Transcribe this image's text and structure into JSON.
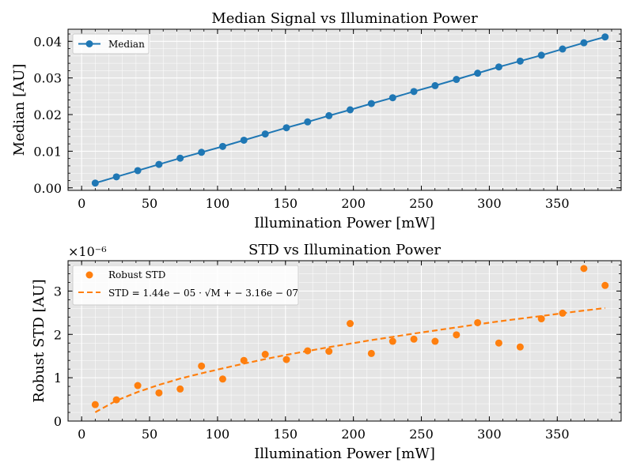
{
  "chart_data": [
    {
      "type": "line",
      "title": "Median Signal vs Illumination Power",
      "xlabel": "Illumination Power [mW]",
      "ylabel": "Median [AU]",
      "xlim": [
        -10,
        397
      ],
      "ylim": [
        -0.0007,
        0.0433
      ],
      "xticks": [
        0,
        50,
        100,
        150,
        200,
        250,
        300,
        350
      ],
      "yticks": [
        0.0,
        0.01,
        0.02,
        0.03,
        0.04
      ],
      "ytick_labels": [
        "0.00",
        "0.01",
        "0.02",
        "0.03",
        "0.04"
      ],
      "grid": true,
      "legend": "upper-left",
      "color": "#1f77b4",
      "series": [
        {
          "name": "Median",
          "style": "line-markers",
          "x": [
            10,
            25.6,
            41.3,
            56.9,
            72.5,
            88.2,
            103.8,
            119.4,
            135.1,
            150.7,
            166.3,
            182.0,
            197.6,
            213.2,
            228.9,
            244.5,
            260.1,
            275.8,
            291.4,
            307.0,
            322.7,
            338.3,
            353.9,
            369.6,
            385.2
          ],
          "values": [
            0.0013,
            0.003,
            0.0047,
            0.0064,
            0.0081,
            0.0097,
            0.0113,
            0.013,
            0.0147,
            0.0164,
            0.018,
            0.0197,
            0.0213,
            0.023,
            0.0246,
            0.0263,
            0.0279,
            0.0296,
            0.0313,
            0.033,
            0.0346,
            0.0362,
            0.0379,
            0.0396,
            0.0412
          ]
        }
      ]
    },
    {
      "type": "scatter",
      "title": "STD vs Illumination Power",
      "xlabel": "Illumination Power [mW]",
      "ylabel": "Robust STD [AU]",
      "offset_text": "×10⁻⁶",
      "scale": 1e-06,
      "xlim": [
        -10,
        397
      ],
      "ylim": [
        0,
        3.7
      ],
      "xticks": [
        0,
        50,
        100,
        150,
        200,
        250,
        300,
        350
      ],
      "yticks": [
        0,
        1,
        2,
        3
      ],
      "grid": true,
      "legend": "upper-left",
      "series": [
        {
          "name": "Robust STD",
          "style": "markers",
          "color": "#ff7f0e",
          "x": [
            10,
            25.6,
            41.3,
            56.9,
            72.5,
            88.2,
            103.8,
            119.4,
            135.1,
            150.7,
            166.3,
            182.0,
            197.6,
            213.2,
            228.9,
            244.5,
            260.1,
            275.8,
            291.4,
            307.0,
            322.7,
            338.3,
            353.9,
            369.6,
            385.2
          ],
          "values": [
            0.38,
            0.49,
            0.82,
            0.65,
            0.74,
            1.27,
            0.97,
            1.4,
            1.54,
            1.42,
            1.62,
            1.61,
            2.25,
            1.56,
            1.84,
            1.89,
            1.84,
            1.99,
            2.27,
            1.8,
            1.71,
            2.36,
            2.49,
            3.52,
            3.13
          ]
        },
        {
          "name": "STD = 1.44e − 05 · √M + − 3.16e − 07",
          "style": "dashed",
          "color": "#ff7f0e",
          "fit": {
            "a": 1.44e-05,
            "b": -3.16e-07
          }
        }
      ]
    }
  ]
}
